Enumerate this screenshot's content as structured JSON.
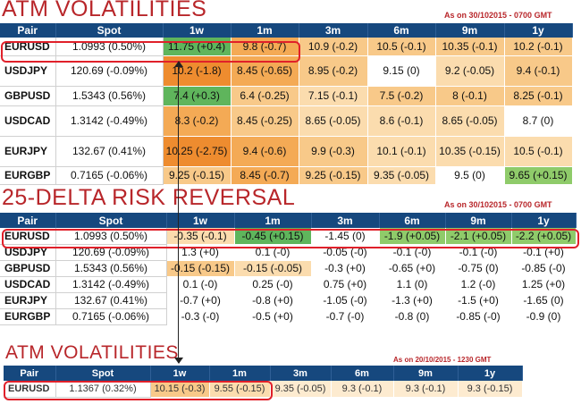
{
  "palette": {
    "header": "#16487e",
    "title": "#b8262a",
    "orange_dark": "#ee8c2f",
    "orange": "#f4aa55",
    "orange_light": "#f8c989",
    "peach": "#fbdcae",
    "cream": "#fdebd0",
    "white": "#ffffff",
    "green": "#5fb55c",
    "green_light": "#8fcb6a",
    "highlight": "#e0202a"
  },
  "section1": {
    "title": "ATM VOLATILITIES",
    "asof": "As on 30/102015 - 0700 GMT",
    "headers": [
      "Pair",
      "Spot",
      "1w",
      "1m",
      "3m",
      "6m",
      "9m",
      "1y"
    ],
    "rows": [
      {
        "pair": "EURUSD",
        "spot": "1.0993 (0.50%)",
        "cells": [
          {
            "v": "11.75 (+0.4)",
            "c": "green"
          },
          {
            "v": "9.8 (-0.7)",
            "c": "orange"
          },
          {
            "v": "10.9 (-0.2)",
            "c": "orange_light"
          },
          {
            "v": "10.5 (-0.1)",
            "c": "orange_light"
          },
          {
            "v": "10.35 (-0.1)",
            "c": "orange_light"
          },
          {
            "v": "10.2 (-0.1)",
            "c": "orange_light"
          }
        ]
      },
      {
        "pair": "USDJPY",
        "spot": "120.69 (-0.09%)",
        "cells": [
          {
            "v": "10.2 (-1.8)",
            "c": "orange_dark"
          },
          {
            "v": "8.45 (-0.65)",
            "c": "orange"
          },
          {
            "v": "8.95 (-0.2)",
            "c": "orange_light"
          },
          {
            "v": "9.15 (0)",
            "c": "white"
          },
          {
            "v": "9.2 (-0.05)",
            "c": "peach"
          },
          {
            "v": "9.4 (-0.1)",
            "c": "orange_light"
          }
        ]
      },
      {
        "pair": "GBPUSD",
        "spot": "1.5343 (0.56%)",
        "cells": [
          {
            "v": "7.4 (+0.3)",
            "c": "green"
          },
          {
            "v": "6.4 (-0.25)",
            "c": "orange_light"
          },
          {
            "v": "7.15 (-0.1)",
            "c": "peach"
          },
          {
            "v": "7.5 (-0.2)",
            "c": "orange_light"
          },
          {
            "v": "8 (-0.1)",
            "c": "orange_light"
          },
          {
            "v": "8.25 (-0.1)",
            "c": "orange_light"
          }
        ]
      },
      {
        "pair": "USDCAD",
        "spot": "1.3142 (-0.49%)",
        "cells": [
          {
            "v": "8.3 (-0.2)",
            "c": "orange"
          },
          {
            "v": "8.45 (-0.25)",
            "c": "orange_light"
          },
          {
            "v": "8.65 (-0.05)",
            "c": "peach"
          },
          {
            "v": "8.6 (-0.1)",
            "c": "peach"
          },
          {
            "v": "8.65 (-0.05)",
            "c": "peach"
          },
          {
            "v": "8.7 (0)",
            "c": "white"
          }
        ]
      },
      {
        "pair": "EURJPY",
        "spot": "132.67 (0.41%)",
        "cells": [
          {
            "v": "10.25 (-2.75)",
            "c": "orange_dark"
          },
          {
            "v": "9.4 (-0.6)",
            "c": "orange"
          },
          {
            "v": "9.9 (-0.3)",
            "c": "orange_light"
          },
          {
            "v": "10.1 (-0.1)",
            "c": "peach"
          },
          {
            "v": "10.35 (-0.15)",
            "c": "peach"
          },
          {
            "v": "10.5 (-0.1)",
            "c": "peach"
          }
        ]
      },
      {
        "pair": "EURGBP",
        "spot": "0.7165 (-0.06%)",
        "cells": [
          {
            "v": "9.25 (-0.15)",
            "c": "orange_light"
          },
          {
            "v": "8.45 (-0.7)",
            "c": "orange"
          },
          {
            "v": "9.25 (-0.15)",
            "c": "orange_light"
          },
          {
            "v": "9.35 (-0.05)",
            "c": "peach"
          },
          {
            "v": "9.5 (0)",
            "c": "white"
          },
          {
            "v": "9.65 (+0.15)",
            "c": "green_light"
          }
        ]
      }
    ]
  },
  "section2": {
    "title": "25-DELTA RISK REVERSAL",
    "asof": "As on 30/102015 - 0700 GMT",
    "headers": [
      "Pair",
      "Spot",
      "1w",
      "1m",
      "3m",
      "6m",
      "9m",
      "1y"
    ],
    "rows": [
      {
        "pair": "EURUSD",
        "spot": "1.0993 (0.50%)",
        "cells": [
          {
            "v": "-0.35 (-0.1)",
            "c": "peach"
          },
          {
            "v": "-0.45 (+0.15)",
            "c": "green"
          },
          {
            "v": "-1.45 (0)",
            "c": "white"
          },
          {
            "v": "-1.9 (+0.05)",
            "c": "green_light"
          },
          {
            "v": "-2.1 (+0.05)",
            "c": "green_light"
          },
          {
            "v": "-2.2 (+0.05)",
            "c": "green_light"
          }
        ]
      },
      {
        "pair": "USDJPY",
        "spot": "120.69 (-0.09%)",
        "cells": [
          {
            "v": "1.3 (+0)",
            "c": "white"
          },
          {
            "v": "0.1 (-0)",
            "c": "white"
          },
          {
            "v": "-0.05 (-0)",
            "c": "white"
          },
          {
            "v": "-0.1 (-0)",
            "c": "white"
          },
          {
            "v": "-0.1 (-0)",
            "c": "white"
          },
          {
            "v": "-0.1 (+0)",
            "c": "white"
          }
        ]
      },
      {
        "pair": "GBPUSD",
        "spot": "1.5343 (0.56%)",
        "cells": [
          {
            "v": "-0.15 (-0.15)",
            "c": "orange_light"
          },
          {
            "v": "-0.15 (-0.05)",
            "c": "peach"
          },
          {
            "v": "-0.3 (+0)",
            "c": "white"
          },
          {
            "v": "-0.65 (+0)",
            "c": "white"
          },
          {
            "v": "-0.75 (0)",
            "c": "white"
          },
          {
            "v": "-0.85 (-0)",
            "c": "white"
          }
        ]
      },
      {
        "pair": "USDCAD",
        "spot": "1.3142 (-0.49%)",
        "cells": [
          {
            "v": "0.1 (-0)",
            "c": "white"
          },
          {
            "v": "0.25 (-0)",
            "c": "white"
          },
          {
            "v": "0.75 (+0)",
            "c": "white"
          },
          {
            "v": "1.1 (0)",
            "c": "white"
          },
          {
            "v": "1.2 (-0)",
            "c": "white"
          },
          {
            "v": "1.25 (+0)",
            "c": "white"
          }
        ]
      },
      {
        "pair": "EURJPY",
        "spot": "132.67 (0.41%)",
        "cells": [
          {
            "v": "-0.7 (+0)",
            "c": "white"
          },
          {
            "v": "-0.8 (+0)",
            "c": "white"
          },
          {
            "v": "-1.05 (-0)",
            "c": "white"
          },
          {
            "v": "-1.3 (+0)",
            "c": "white"
          },
          {
            "v": "-1.5 (+0)",
            "c": "white"
          },
          {
            "v": "-1.65 (0)",
            "c": "white"
          }
        ]
      },
      {
        "pair": "EURGBP",
        "spot": "0.7165 (-0.06%)",
        "cells": [
          {
            "v": "-0.3 (-0)",
            "c": "white"
          },
          {
            "v": "-0.5 (+0)",
            "c": "white"
          },
          {
            "v": "-0.7 (-0)",
            "c": "white"
          },
          {
            "v": "-0.8 (0)",
            "c": "white"
          },
          {
            "v": "-0.85 (-0)",
            "c": "white"
          },
          {
            "v": "-0.9 (0)",
            "c": "white"
          }
        ]
      }
    ]
  },
  "section3": {
    "title": "ATM VOLATILITIES",
    "asof": "As on 20/10/2015 - 1230 GMT",
    "headers": [
      "Pair",
      "Spot",
      "1w",
      "1m",
      "3m",
      "6m",
      "9m",
      "1y"
    ],
    "rows": [
      {
        "pair": "EURUSD",
        "spot": "1.1367 (0.32%)",
        "cells": [
          {
            "v": "10.15 (-0.3)",
            "c": "orange_light"
          },
          {
            "v": "9.55 (-0.15)",
            "c": "peach"
          },
          {
            "v": "9.35 (-0.05)",
            "c": "cream"
          },
          {
            "v": "9.3 (-0.1)",
            "c": "cream"
          },
          {
            "v": "9.3 (-0.1)",
            "c": "cream"
          },
          {
            "v": "9.3 (-0.15)",
            "c": "cream"
          }
        ]
      }
    ]
  }
}
